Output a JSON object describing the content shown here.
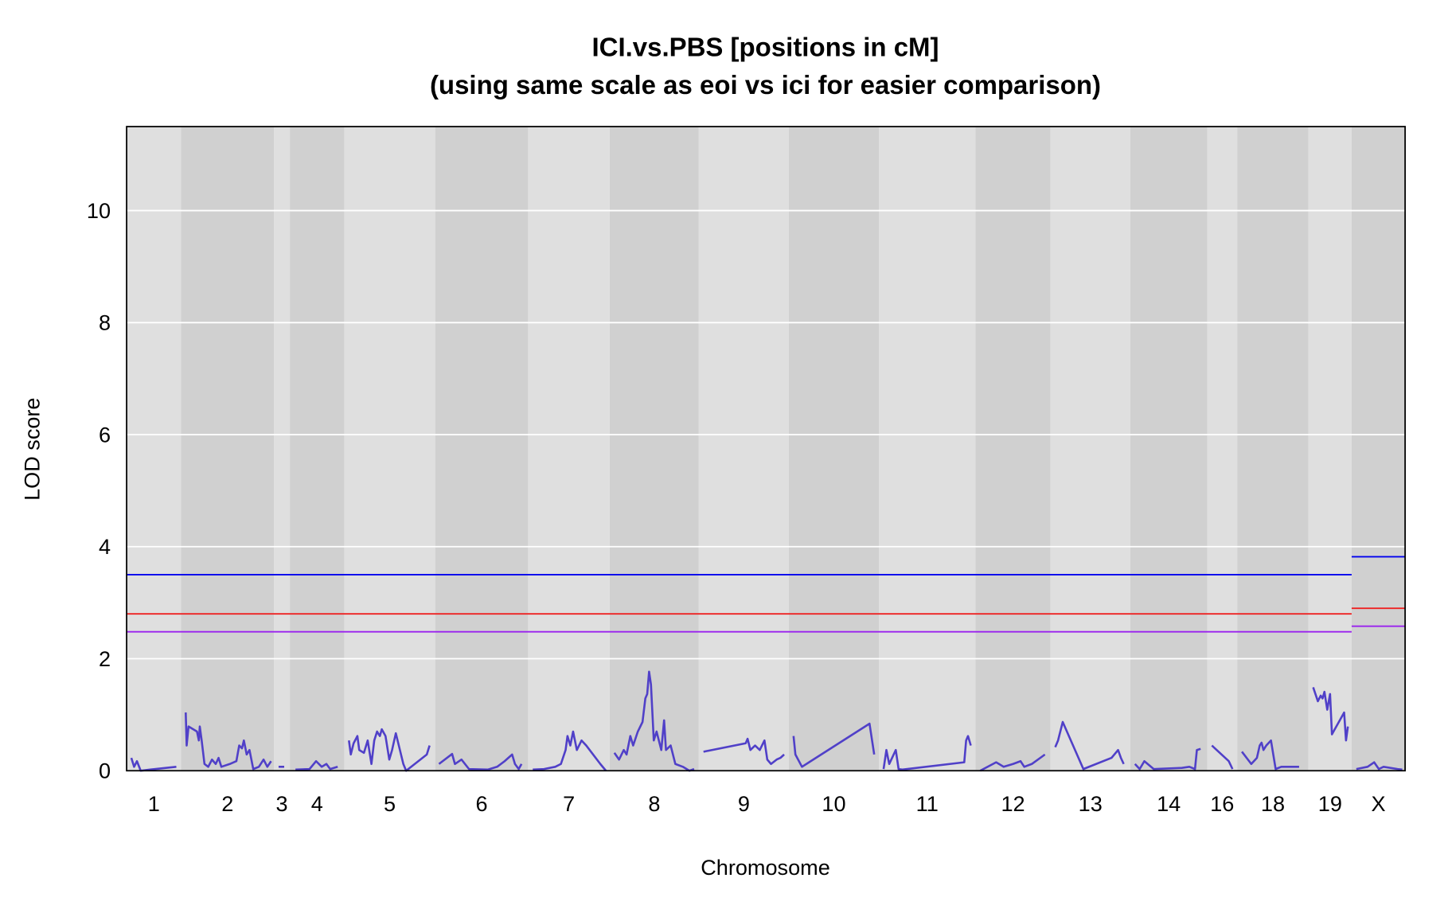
{
  "chart_data": {
    "type": "line",
    "title": "ICI.vs.PBS [positions in cM]",
    "subtitle": "(using same scale as eoi vs ici for easier comparison)",
    "xlabel": "Chromosome",
    "ylabel": "LOD score",
    "ylim": [
      0,
      11.5
    ],
    "yticks": [
      0,
      2,
      4,
      6,
      8,
      10
    ],
    "grid": true,
    "band_colors": [
      "#dfdfdf",
      "#d0d0d0"
    ],
    "curve_color": "#5040c8",
    "chromosomes": [
      {
        "name": "1",
        "length": 58,
        "points": [
          [
            5,
            0.23
          ],
          [
            8,
            0.07
          ],
          [
            11,
            0.17
          ],
          [
            15,
            0
          ],
          [
            25,
            0.02
          ],
          [
            53,
            0.07
          ]
        ]
      },
      {
        "name": "2",
        "length": 99,
        "points": [
          [
            5,
            1.04
          ],
          [
            6,
            0.45
          ],
          [
            8,
            0.79
          ],
          [
            17,
            0.7
          ],
          [
            19,
            0.54
          ],
          [
            20,
            0.79
          ],
          [
            22,
            0.54
          ],
          [
            25,
            0.12
          ],
          [
            29,
            0.07
          ],
          [
            33,
            0.2
          ],
          [
            37,
            0.12
          ],
          [
            40,
            0.23
          ],
          [
            43,
            0.07
          ],
          [
            52,
            0.12
          ],
          [
            59,
            0.17
          ],
          [
            62,
            0.45
          ],
          [
            65,
            0.4
          ],
          [
            67,
            0.54
          ],
          [
            70,
            0.29
          ],
          [
            73,
            0.37
          ],
          [
            77,
            0.03
          ],
          [
            83,
            0.07
          ],
          [
            88,
            0.2
          ],
          [
            92,
            0.07
          ],
          [
            96,
            0.17
          ]
        ]
      },
      {
        "name": "3",
        "length": 17,
        "points": [
          [
            5,
            0.07
          ],
          [
            11,
            0.07
          ]
        ]
      },
      {
        "name": "4",
        "length": 58,
        "points": [
          [
            6,
            0.02
          ],
          [
            21,
            0.03
          ],
          [
            28,
            0.17
          ],
          [
            34,
            0.07
          ],
          [
            39,
            0.12
          ],
          [
            43,
            0.03
          ],
          [
            51,
            0.07
          ]
        ]
      },
      {
        "name": "5",
        "length": 97,
        "points": [
          [
            5,
            0.54
          ],
          [
            7,
            0.29
          ],
          [
            10,
            0.49
          ],
          [
            14,
            0.62
          ],
          [
            16,
            0.37
          ],
          [
            21,
            0.32
          ],
          [
            25,
            0.54
          ],
          [
            29,
            0.12
          ],
          [
            32,
            0.54
          ],
          [
            35,
            0.7
          ],
          [
            38,
            0.62
          ],
          [
            40,
            0.74
          ],
          [
            44,
            0.62
          ],
          [
            48,
            0.2
          ],
          [
            51,
            0.37
          ],
          [
            55,
            0.67
          ],
          [
            63,
            0.12
          ],
          [
            66,
            0
          ],
          [
            88,
            0.29
          ],
          [
            91,
            0.45
          ]
        ]
      },
      {
        "name": "6",
        "length": 99,
        "points": [
          [
            4,
            0.12
          ],
          [
            18,
            0.3
          ],
          [
            21,
            0.12
          ],
          [
            28,
            0.2
          ],
          [
            36,
            0.03
          ],
          [
            56,
            0.02
          ],
          [
            66,
            0.07
          ],
          [
            74,
            0.17
          ],
          [
            82,
            0.29
          ],
          [
            85,
            0.12
          ],
          [
            89,
            0.03
          ],
          [
            92,
            0.12
          ]
        ]
      },
      {
        "name": "7",
        "length": 87,
        "points": [
          [
            5,
            0.02
          ],
          [
            17,
            0.03
          ],
          [
            29,
            0.07
          ],
          [
            35,
            0.12
          ],
          [
            40,
            0.37
          ],
          [
            42,
            0.62
          ],
          [
            45,
            0.45
          ],
          [
            48,
            0.7
          ],
          [
            52,
            0.37
          ],
          [
            57,
            0.54
          ],
          [
            62,
            0.45
          ],
          [
            77,
            0.12
          ],
          [
            83,
            0
          ]
        ]
      },
      {
        "name": "8",
        "length": 95,
        "points": [
          [
            5,
            0.32
          ],
          [
            10,
            0.2
          ],
          [
            15,
            0.37
          ],
          [
            18,
            0.29
          ],
          [
            22,
            0.62
          ],
          [
            25,
            0.45
          ],
          [
            30,
            0.7
          ],
          [
            35,
            0.87
          ],
          [
            38,
            1.29
          ],
          [
            40,
            1.37
          ],
          [
            42,
            1.77
          ],
          [
            44,
            1.54
          ],
          [
            47,
            0.54
          ],
          [
            50,
            0.7
          ],
          [
            55,
            0.37
          ],
          [
            58,
            0.9
          ],
          [
            60,
            0.37
          ],
          [
            65,
            0.45
          ],
          [
            70,
            0.12
          ],
          [
            78,
            0.07
          ],
          [
            85,
            0
          ],
          [
            90,
            0.03
          ]
        ]
      },
      {
        "name": "9",
        "length": 96,
        "points": [
          [
            5,
            0.34
          ],
          [
            50,
            0.49
          ],
          [
            52,
            0.57
          ],
          [
            55,
            0.37
          ],
          [
            60,
            0.45
          ],
          [
            65,
            0.37
          ],
          [
            70,
            0.54
          ],
          [
            73,
            0.2
          ],
          [
            77,
            0.12
          ],
          [
            83,
            0.2
          ],
          [
            87,
            0.23
          ],
          [
            91,
            0.29
          ]
        ]
      },
      {
        "name": "10",
        "length": 96,
        "points": [
          [
            5,
            0.62
          ],
          [
            7,
            0.29
          ],
          [
            14,
            0.07
          ],
          [
            86,
            0.84
          ],
          [
            91,
            0.29
          ]
        ]
      },
      {
        "name": "11",
        "length": 103,
        "points": [
          [
            5,
            0.03
          ],
          [
            8,
            0.37
          ],
          [
            11,
            0.12
          ],
          [
            18,
            0.37
          ],
          [
            21,
            0.03
          ],
          [
            25,
            0.02
          ],
          [
            91,
            0.15
          ],
          [
            93,
            0.54
          ],
          [
            95,
            0.62
          ],
          [
            98,
            0.45
          ]
        ]
      },
      {
        "name": "12",
        "length": 80,
        "points": [
          [
            5,
            0
          ],
          [
            22,
            0.15
          ],
          [
            30,
            0.07
          ],
          [
            40,
            0.12
          ],
          [
            48,
            0.17
          ],
          [
            52,
            0.07
          ],
          [
            60,
            0.12
          ],
          [
            74,
            0.29
          ]
        ]
      },
      {
        "name": "13",
        "length": 85,
        "points": [
          [
            5,
            0.42
          ],
          [
            8,
            0.54
          ],
          [
            13,
            0.87
          ],
          [
            35,
            0.03
          ],
          [
            65,
            0.23
          ],
          [
            72,
            0.37
          ],
          [
            75,
            0.23
          ],
          [
            78,
            0.12
          ]
        ]
      },
      {
        "name": "14",
        "length": 82,
        "points": [
          [
            5,
            0.12
          ],
          [
            10,
            0.03
          ],
          [
            15,
            0.17
          ],
          [
            25,
            0.03
          ],
          [
            55,
            0.05
          ],
          [
            63,
            0.07
          ],
          [
            69,
            0.03
          ],
          [
            71,
            0.37
          ],
          [
            75,
            0.39
          ]
        ]
      },
      {
        "name": "16",
        "length": 32,
        "points": [
          [
            5,
            0.45
          ],
          [
            23,
            0.17
          ],
          [
            27,
            0.03
          ]
        ]
      },
      {
        "name": "18",
        "length": 76,
        "points": [
          [
            5,
            0.34
          ],
          [
            15,
            0.12
          ],
          [
            21,
            0.23
          ],
          [
            24,
            0.45
          ],
          [
            26,
            0.5
          ],
          [
            28,
            0.37
          ],
          [
            31,
            0.45
          ],
          [
            36,
            0.54
          ],
          [
            41,
            0.03
          ],
          [
            47,
            0.07
          ],
          [
            56,
            0.07
          ],
          [
            66,
            0.07
          ]
        ]
      },
      {
        "name": "19",
        "length": 46,
        "points": [
          [
            5,
            1.49
          ],
          [
            10,
            1.24
          ],
          [
            13,
            1.34
          ],
          [
            15,
            1.29
          ],
          [
            17,
            1.41
          ],
          [
            20,
            1.09
          ],
          [
            23,
            1.37
          ],
          [
            25,
            0.65
          ],
          [
            38,
            1.04
          ],
          [
            40,
            0.54
          ],
          [
            42,
            0.79
          ]
        ]
      },
      {
        "name": "X",
        "length": 57,
        "points": [
          [
            5,
            0.03
          ],
          [
            17,
            0.07
          ],
          [
            24,
            0.15
          ],
          [
            29,
            0.03
          ],
          [
            34,
            0.07
          ],
          [
            49,
            0.03
          ],
          [
            54,
            0.02
          ]
        ]
      }
    ],
    "thresholds": [
      {
        "color": "#0000ee",
        "autosome": 3.5,
        "x": 3.82
      },
      {
        "color": "#ee2222",
        "autosome": 2.8,
        "x": 2.9
      },
      {
        "color": "#9a22ee",
        "autosome": 2.48,
        "x": 2.58
      }
    ]
  }
}
